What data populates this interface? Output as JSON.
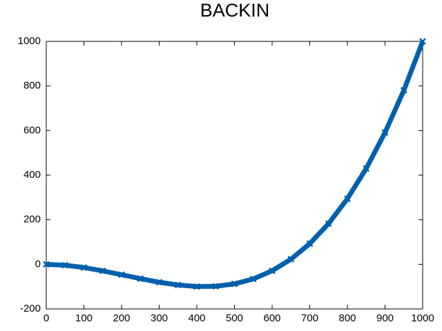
{
  "chart_data": {
    "type": "line",
    "title": "BACKIN",
    "x": [
      0,
      50,
      100,
      150,
      200,
      250,
      300,
      350,
      400,
      450,
      500,
      550,
      600,
      650,
      700,
      750,
      800,
      850,
      900,
      950,
      1000
    ],
    "values": [
      0,
      -3.9,
      -14.3,
      -29.2,
      -46.5,
      -64.1,
      -80.2,
      -92.6,
      -99.4,
      -98.4,
      -87.7,
      -65.3,
      -29.0,
      23.0,
      92.9,
      182.6,
      294.2,
      429.7,
      591.2,
      780.6,
      1000
    ],
    "color": "#0060ad",
    "xlim": [
      0,
      1000
    ],
    "xticks": [
      0,
      100,
      200,
      300,
      400,
      500,
      600,
      700,
      800,
      900,
      1000
    ],
    "ylim": [
      -200,
      1000
    ],
    "yticks": [
      -200,
      0,
      200,
      400,
      600,
      800,
      1000
    ],
    "grid": false
  }
}
